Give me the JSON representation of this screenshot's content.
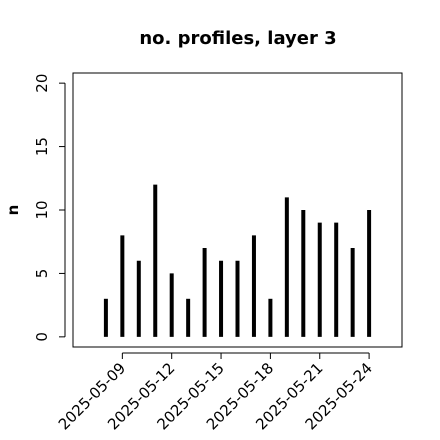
{
  "chart_data": {
    "type": "bar",
    "title": "no. profiles, layer 3",
    "y_label": "n",
    "x": [
      "2025-05-08",
      "2025-05-09",
      "2025-05-10",
      "2025-05-11",
      "2025-05-12",
      "2025-05-13",
      "2025-05-14",
      "2025-05-15",
      "2025-05-16",
      "2025-05-17",
      "2025-05-18",
      "2025-05-19",
      "2025-05-20",
      "2025-05-21",
      "2025-05-22",
      "2025-05-23",
      "2025-05-24"
    ],
    "values": [
      3,
      8,
      6,
      12,
      5,
      3,
      7,
      6,
      6,
      8,
      3,
      11,
      10,
      9,
      9,
      7,
      10
    ],
    "color": "#000000",
    "xlim": [
      "2025-05-06",
      "2025-05-26"
    ],
    "xticks": [
      "2025-05-09",
      "2025-05-12",
      "2025-05-15",
      "2025-05-18",
      "2025-05-21",
      "2025-05-24"
    ],
    "xtick_colors": [
      "#000000",
      "#000000",
      "#228b22",
      "#000000",
      "#000000",
      "#000000"
    ],
    "ylim": [
      -0.8,
      20.8
    ],
    "yticks": [
      0,
      5,
      10,
      15,
      20
    ]
  }
}
